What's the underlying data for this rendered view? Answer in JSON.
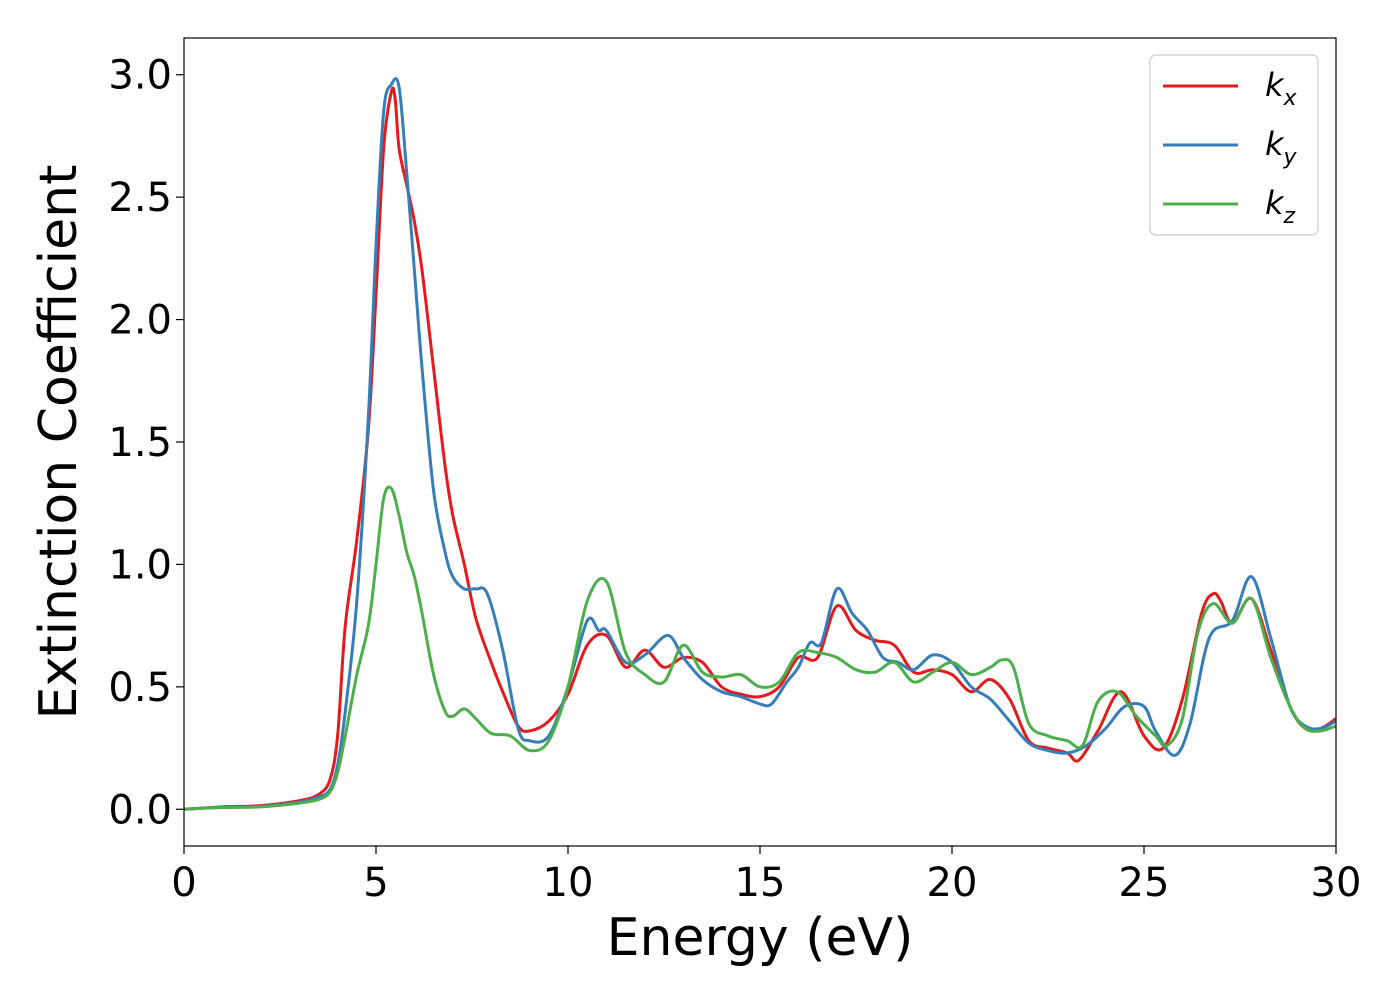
{
  "chart_data": {
    "type": "line",
    "title": "",
    "xlabel": "Energy (eV)",
    "ylabel": "Extinction Coefficient",
    "xlim": [
      0,
      30
    ],
    "ylim": [
      -0.15,
      3.15
    ],
    "xticks": [
      0,
      5,
      10,
      15,
      20,
      25,
      30
    ],
    "xtick_labels": [
      "0",
      "5",
      "10",
      "15",
      "20",
      "25",
      "30"
    ],
    "yticks": [
      0.0,
      0.5,
      1.0,
      1.5,
      2.0,
      2.5,
      3.0
    ],
    "ytick_labels": [
      "0.0",
      "0.5",
      "1.0",
      "1.5",
      "2.0",
      "2.5",
      "3.0"
    ],
    "grid": false,
    "legend_position": "top-right",
    "series": [
      {
        "name": "k",
        "subscript": "x",
        "color": "#e41a1c",
        "x": [
          0,
          1,
          2,
          3,
          3.5,
          3.8,
          4.0,
          4.2,
          4.5,
          4.8,
          5.0,
          5.2,
          5.4,
          5.5,
          5.6,
          5.8,
          6.0,
          6.2,
          6.5,
          6.8,
          7.0,
          7.3,
          7.6,
          8.0,
          8.3,
          8.7,
          9.0,
          9.5,
          10.0,
          10.5,
          11.0,
          11.5,
          12.0,
          12.5,
          13.0,
          13.5,
          14.0,
          14.5,
          15.0,
          15.5,
          16.0,
          16.5,
          17.0,
          17.5,
          18.0,
          18.5,
          19.0,
          19.5,
          20.0,
          20.5,
          21.0,
          21.5,
          22.0,
          22.5,
          23.0,
          23.3,
          23.8,
          24.4,
          25.0,
          25.5,
          26.0,
          26.5,
          26.8,
          27.0,
          27.3,
          27.8,
          28.3,
          28.8,
          29.2,
          29.6,
          30.0
        ],
        "y": [
          0.0,
          0.01,
          0.015,
          0.035,
          0.06,
          0.12,
          0.3,
          0.75,
          1.1,
          1.55,
          2.1,
          2.7,
          2.93,
          2.9,
          2.7,
          2.55,
          2.4,
          2.2,
          1.8,
          1.4,
          1.2,
          1.0,
          0.78,
          0.6,
          0.48,
          0.34,
          0.32,
          0.36,
          0.47,
          0.67,
          0.71,
          0.58,
          0.65,
          0.58,
          0.62,
          0.6,
          0.5,
          0.47,
          0.46,
          0.5,
          0.62,
          0.62,
          0.83,
          0.73,
          0.69,
          0.67,
          0.56,
          0.57,
          0.55,
          0.48,
          0.53,
          0.45,
          0.28,
          0.25,
          0.23,
          0.2,
          0.32,
          0.48,
          0.3,
          0.25,
          0.45,
          0.8,
          0.88,
          0.85,
          0.76,
          0.86,
          0.65,
          0.42,
          0.33,
          0.33,
          0.37
        ]
      },
      {
        "name": "k",
        "subscript": "y",
        "color": "#377eb8",
        "x": [
          0,
          1,
          2,
          3,
          3.5,
          3.8,
          4.0,
          4.2,
          4.5,
          4.8,
          5.0,
          5.2,
          5.4,
          5.6,
          5.8,
          6.0,
          6.2,
          6.5,
          6.8,
          7.0,
          7.3,
          7.6,
          7.9,
          8.3,
          8.7,
          9.0,
          9.5,
          10.0,
          10.5,
          10.8,
          11.0,
          11.5,
          12.0,
          12.6,
          13.0,
          13.5,
          14.0,
          14.5,
          15.0,
          15.3,
          15.7,
          16.0,
          16.3,
          16.6,
          17.0,
          17.4,
          17.8,
          18.2,
          18.6,
          19.0,
          19.5,
          20.0,
          20.5,
          21.0,
          21.5,
          22.0,
          22.5,
          23.0,
          23.5,
          24.0,
          24.5,
          25.0,
          25.3,
          25.8,
          26.2,
          26.7,
          27.3,
          27.8,
          28.3,
          28.8,
          29.2,
          29.6,
          30.0
        ],
        "y": [
          0.0,
          0.008,
          0.012,
          0.03,
          0.05,
          0.08,
          0.18,
          0.4,
          0.85,
          1.6,
          2.3,
          2.85,
          2.96,
          2.95,
          2.6,
          2.2,
          1.8,
          1.3,
          1.05,
          0.95,
          0.9,
          0.9,
          0.88,
          0.65,
          0.33,
          0.28,
          0.3,
          0.5,
          0.77,
          0.73,
          0.73,
          0.6,
          0.63,
          0.71,
          0.62,
          0.53,
          0.48,
          0.46,
          0.43,
          0.43,
          0.52,
          0.58,
          0.68,
          0.68,
          0.9,
          0.8,
          0.73,
          0.62,
          0.6,
          0.57,
          0.63,
          0.6,
          0.5,
          0.45,
          0.36,
          0.27,
          0.24,
          0.23,
          0.26,
          0.33,
          0.42,
          0.42,
          0.32,
          0.22,
          0.35,
          0.7,
          0.77,
          0.95,
          0.7,
          0.42,
          0.34,
          0.33,
          0.36
        ]
      },
      {
        "name": "k",
        "subscript": "z",
        "color": "#4daf4a",
        "x": [
          0,
          1,
          2,
          3,
          3.5,
          3.8,
          4.0,
          4.2,
          4.5,
          4.8,
          5.0,
          5.2,
          5.4,
          5.6,
          5.8,
          6.0,
          6.2,
          6.5,
          6.8,
          7.0,
          7.3,
          7.6,
          8.0,
          8.5,
          9.0,
          9.5,
          10.0,
          10.5,
          11.0,
          11.5,
          12.0,
          12.5,
          13.0,
          13.5,
          14.0,
          14.5,
          15.0,
          15.5,
          16.0,
          16.5,
          17.0,
          17.5,
          18.0,
          18.5,
          19.0,
          19.5,
          20.0,
          20.5,
          21.0,
          21.3,
          21.6,
          22.0,
          22.5,
          23.0,
          23.4,
          23.8,
          24.3,
          24.8,
          25.3,
          25.6,
          26.0,
          26.4,
          26.8,
          27.3,
          27.8,
          28.3,
          28.8,
          29.2,
          29.6,
          30.0
        ],
        "y": [
          0.0,
          0.007,
          0.01,
          0.025,
          0.04,
          0.07,
          0.15,
          0.3,
          0.55,
          0.75,
          1.0,
          1.27,
          1.31,
          1.2,
          1.05,
          0.95,
          0.8,
          0.55,
          0.4,
          0.38,
          0.41,
          0.37,
          0.31,
          0.3,
          0.24,
          0.28,
          0.5,
          0.85,
          0.93,
          0.64,
          0.55,
          0.52,
          0.67,
          0.56,
          0.54,
          0.55,
          0.5,
          0.52,
          0.64,
          0.64,
          0.62,
          0.57,
          0.56,
          0.6,
          0.52,
          0.56,
          0.6,
          0.55,
          0.58,
          0.61,
          0.58,
          0.35,
          0.3,
          0.28,
          0.26,
          0.44,
          0.48,
          0.38,
          0.3,
          0.26,
          0.37,
          0.72,
          0.84,
          0.76,
          0.86,
          0.62,
          0.42,
          0.33,
          0.32,
          0.34
        ]
      }
    ]
  }
}
